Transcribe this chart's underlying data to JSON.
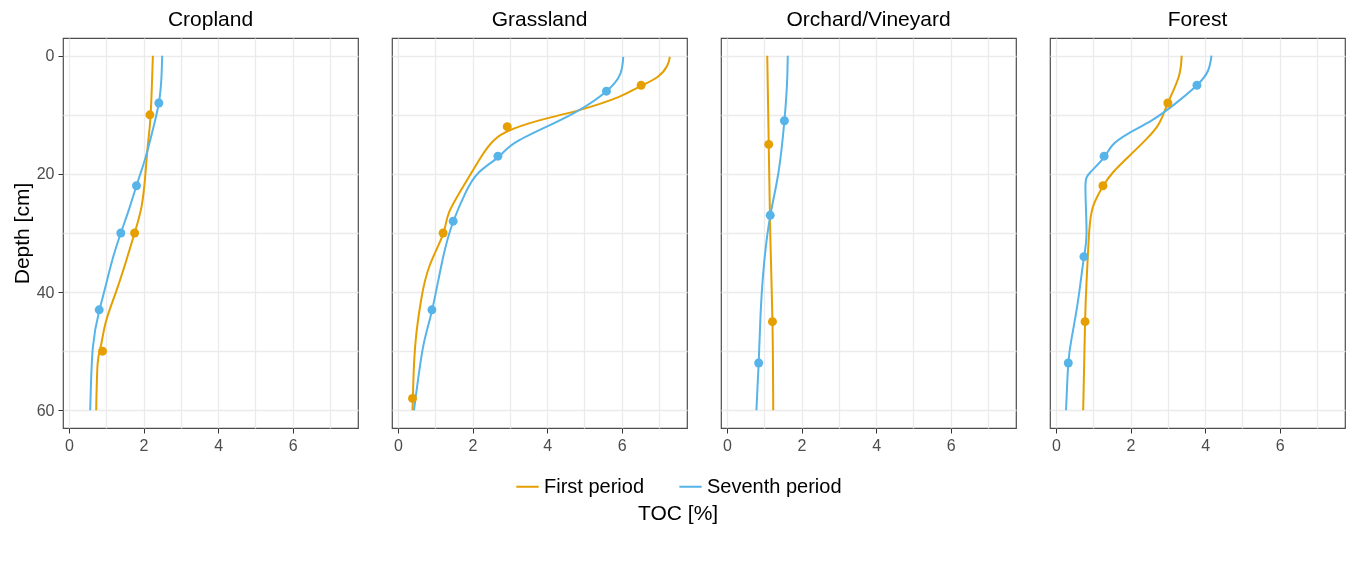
{
  "chart_data": [
    {
      "type": "line",
      "title": "Cropland",
      "ylabel": "Depth [cm]",
      "xlim": [
        -0.16,
        7.75
      ],
      "ylim": [
        63,
        -3
      ],
      "xticks": [
        0,
        {
          "value": 1,
          "label": null
        },
        2,
        {
          "value": 3,
          "label": null
        },
        4,
        {
          "value": 5,
          "label": null
        },
        6,
        {
          "value": 7,
          "label": null
        }
      ],
      "yticks": [
        0,
        {
          "value": 10,
          "label": null
        },
        20,
        {
          "value": 30,
          "label": null
        },
        40,
        {
          "value": 50,
          "label": null
        },
        60
      ],
      "grid": true,
      "legend": "bottom",
      "series": [
        {
          "name": "First period",
          "type": "line",
          "color": "#e69f00",
          "x": [
            2.25,
            2.19,
            2.12,
            2.05,
            1.95,
            1.76,
            1.52,
            1.26,
            0.99,
            0.86,
            0.77,
            0.73
          ],
          "values": [
            0,
            10,
            14.8,
            20,
            25.4,
            30,
            35,
            40,
            45,
            49,
            52,
            60
          ]
        },
        {
          "name": "Seventh period",
          "type": "line",
          "color": "#56b4e9",
          "x": [
            2.5,
            2.48,
            2.41,
            2.23,
            2.05,
            1.81,
            1.61,
            1.39,
            1.17,
            0.99,
            0.81,
            0.64,
            0.57
          ],
          "values": [
            0,
            3.6,
            8,
            13,
            17.3,
            22,
            26,
            30,
            34.4,
            38.8,
            43.2,
            49.4,
            60
          ]
        },
        {
          "type": "scatter",
          "marker": "circle",
          "color": "#e69f00",
          "x": [
            2.17,
            1.76,
            0.9
          ],
          "values": [
            10,
            30,
            50
          ]
        },
        {
          "type": "scatter",
          "marker": "circle",
          "color": "#56b4e9",
          "x": [
            2.41,
            1.81,
            1.39,
            0.81
          ],
          "values": [
            8,
            22,
            30,
            43
          ]
        }
      ]
    },
    {
      "type": "line",
      "title": "Grassland",
      "xlabel": "TOC [%]",
      "tick_labels": "x",
      "xlim": [
        -0.16,
        7.75
      ],
      "ylim": [
        63,
        -3
      ],
      "xticks": [
        0,
        {
          "value": 1,
          "label": null
        },
        2,
        {
          "value": 3,
          "label": null
        },
        4,
        {
          "value": 5,
          "label": null
        },
        6,
        {
          "value": 7,
          "label": null
        }
      ],
      "yticks": [
        0,
        {
          "value": 10,
          "label": null
        },
        20,
        {
          "value": 30,
          "label": null
        },
        40,
        {
          "value": 50,
          "label": null
        },
        60
      ],
      "grid": true,
      "series": [
        {
          "name": "First period",
          "type": "line",
          "color": "#e69f00",
          "x": [
            7.29,
            7.22,
            6.96,
            6.52,
            5.91,
            4.86,
            3.99,
            3.12,
            2.59,
            2.24,
            1.81,
            1.37,
            1.21,
            0.85,
            0.63,
            0.5,
            0.43,
            0.39
          ],
          "values": [
            0.2,
            1.7,
            3.6,
            5.1,
            7,
            9.2,
            10.6,
            12.3,
            14.2,
            17,
            21.5,
            26.5,
            30.2,
            35.5,
            41,
            46.6,
            52.2,
            60
          ]
        },
        {
          "name": "Seventh period",
          "type": "line",
          "color": "#56b4e9",
          "x": [
            6.04,
            5.96,
            5.59,
            4.86,
            3.99,
            3.12,
            2.68,
            2.16,
            1.81,
            1.48,
            1.2,
            0.91,
            0.67,
            0.43
          ],
          "values": [
            0.2,
            3.1,
            6,
            9.2,
            12,
            14.8,
            17.2,
            19.8,
            23.2,
            28.1,
            34.4,
            43.2,
            49.4,
            60
          ]
        },
        {
          "type": "scatter",
          "marker": "circle",
          "color": "#e69f00",
          "x": [
            6.52,
            2.93,
            1.21,
            0.39
          ],
          "values": [
            5,
            12,
            30,
            58
          ]
        },
        {
          "type": "scatter",
          "marker": "circle",
          "color": "#56b4e9",
          "x": [
            5.59,
            2.68,
            1.48,
            0.91
          ],
          "values": [
            6,
            17,
            28,
            43
          ]
        }
      ]
    },
    {
      "type": "line",
      "title": "Orchard/Vineyard",
      "tick_labels": "x",
      "xlim": [
        -0.16,
        7.75
      ],
      "ylim": [
        63,
        -3
      ],
      "xticks": [
        0,
        {
          "value": 1,
          "label": null
        },
        2,
        {
          "value": 3,
          "label": null
        },
        4,
        {
          "value": 5,
          "label": null
        },
        6,
        {
          "value": 7,
          "label": null
        }
      ],
      "yticks": [
        0,
        {
          "value": 10,
          "label": null
        },
        20,
        {
          "value": 30,
          "label": null
        },
        40,
        {
          "value": 50,
          "label": null
        },
        60
      ],
      "grid": true,
      "series": [
        {
          "name": "First period",
          "type": "line",
          "color": "#e69f00",
          "x": [
            1.08,
            1.12,
            1.16,
            1.22,
            1.24
          ],
          "values": [
            0,
            15,
            30,
            45,
            60
          ]
        },
        {
          "name": "Seventh period",
          "type": "line",
          "color": "#56b4e9",
          "x": [
            1.63,
            1.61,
            1.54,
            1.38,
            1.16,
            0.99,
            0.9,
            0.85,
            0.79
          ],
          "values": [
            0,
            4.7,
            11,
            19.8,
            27.1,
            35.5,
            43.9,
            52,
            60
          ]
        },
        {
          "type": "scatter",
          "marker": "circle",
          "color": "#e69f00",
          "x": [
            1.12,
            1.22
          ],
          "values": [
            15,
            45
          ]
        },
        {
          "type": "scatter",
          "marker": "circle",
          "color": "#56b4e9",
          "x": [
            1.54,
            1.16,
            0.85
          ],
          "values": [
            11,
            27,
            52
          ]
        }
      ]
    },
    {
      "type": "line",
      "title": "Forest",
      "tick_labels": "x",
      "xlim": [
        -0.16,
        7.75
      ],
      "ylim": [
        63,
        -3
      ],
      "xticks": [
        0,
        {
          "value": 1,
          "label": null
        },
        2,
        {
          "value": 3,
          "label": null
        },
        4,
        {
          "value": 5,
          "label": null
        },
        6,
        {
          "value": 7,
          "label": null
        }
      ],
      "yticks": [
        0,
        {
          "value": 10,
          "label": null
        },
        20,
        {
          "value": 30,
          "label": null
        },
        40,
        {
          "value": 50,
          "label": null
        },
        60
      ],
      "grid": true,
      "series": [
        {
          "name": "First period",
          "type": "line",
          "color": "#e69f00",
          "x": [
            3.37,
            3.29,
            3.0,
            2.76,
            2.41,
            1.96,
            1.52,
            1.26,
            1.0,
            0.89,
            0.82,
            0.78,
            0.73
          ],
          "values": [
            0,
            3.6,
            8,
            11.5,
            14.2,
            17,
            19.8,
            22.1,
            25.4,
            29.9,
            38.3,
            45.1,
            60
          ]
        },
        {
          "name": "Seventh period",
          "type": "line",
          "color": "#56b4e9",
          "x": [
            4.17,
            4.08,
            3.78,
            3.2,
            2.58,
            1.96,
            1.52,
            1.29,
            0.91,
            0.79,
            0.82,
            0.75,
            0.6,
            0.42,
            0.33,
            0.27
          ],
          "values": [
            0,
            2.5,
            5,
            8.1,
            10.9,
            13.1,
            15.1,
            17.2,
            19.8,
            22.6,
            29.9,
            34.1,
            41.1,
            47.8,
            52.1,
            60
          ]
        },
        {
          "type": "scatter",
          "marker": "circle",
          "color": "#e69f00",
          "x": [
            3.0,
            1.26,
            0.78
          ],
          "values": [
            8,
            22,
            45
          ]
        },
        {
          "type": "scatter",
          "marker": "circle",
          "color": "#56b4e9",
          "x": [
            3.78,
            1.29,
            0.75,
            0.33
          ],
          "values": [
            5,
            17,
            34,
            52
          ]
        }
      ]
    }
  ]
}
